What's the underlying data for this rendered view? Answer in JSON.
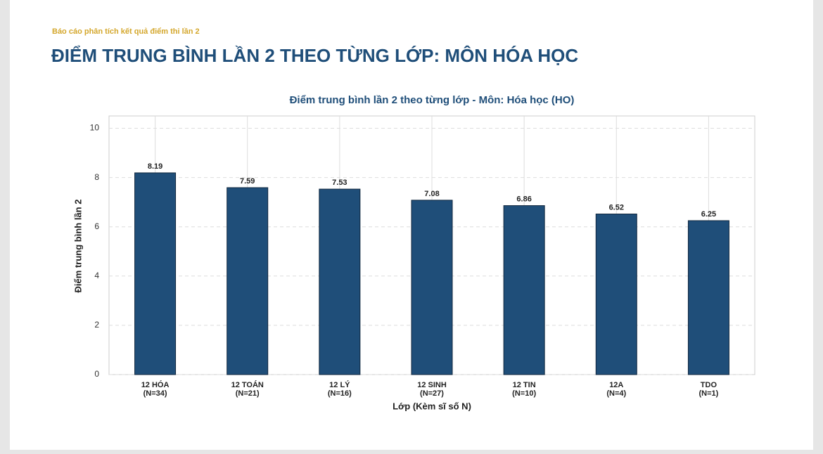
{
  "header": {
    "subtitle": "Báo cáo phân tích kết quả điểm thi lần 2",
    "title": "ĐIỂM TRUNG BÌNH LẦN 2 THEO TỪNG LỚP: MÔN HÓA HỌC"
  },
  "chart_data": {
    "type": "bar",
    "title": "Điểm trung bình lần 2 theo từng lớp - Môn: Hóa học (HO)",
    "x_label": "Lớp (Kèm sĩ số N)",
    "y_label": "Điểm trung bình lần 2",
    "categories": [
      "12 HÓA\n(N=34)",
      "12 TOÁN\n(N=21)",
      "12 LÝ\n(N=16)",
      "12 SINH\n(N=27)",
      "12 TIN\n(N=10)",
      "12A\n(N=4)",
      "TDO\n(N=1)"
    ],
    "values": [
      8.19,
      7.59,
      7.53,
      7.08,
      6.86,
      6.52,
      6.25
    ],
    "color": "#1f4e79",
    "ylim": [
      0,
      10.5
    ],
    "yticks": [
      0,
      2,
      4,
      6,
      8,
      10
    ],
    "grid": true
  }
}
